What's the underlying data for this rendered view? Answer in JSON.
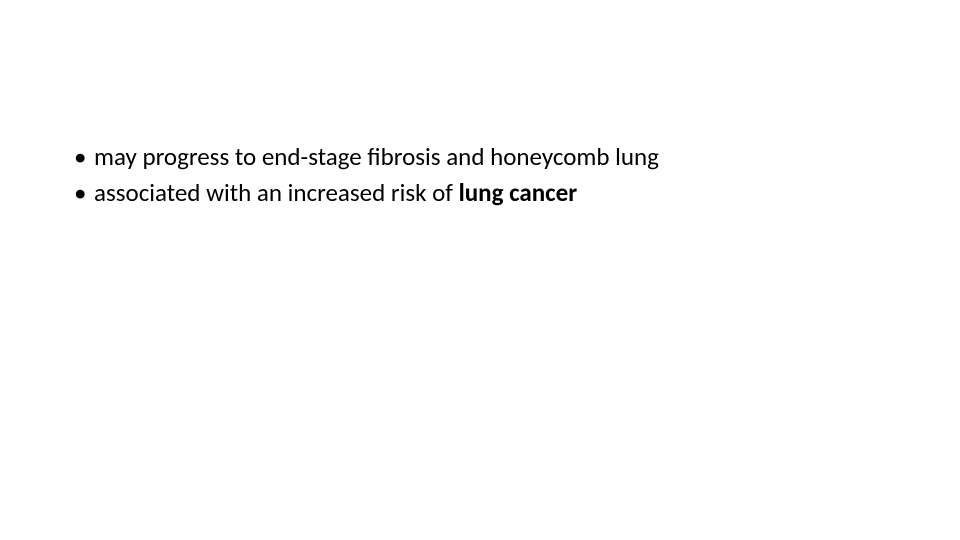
{
  "slide": {
    "background_color": "#ffffff",
    "text_color": "#000000",
    "font_family": "Calibri",
    "font_size_pt": 25,
    "bullets": [
      {
        "text_prefix": "may progress to end-stage fibrosis and honeycomb lung",
        "text_bold": "",
        "has_bold": false
      },
      {
        "text_prefix": "associated with an increased risk of ",
        "text_bold": "lung cancer",
        "has_bold": true
      }
    ]
  }
}
